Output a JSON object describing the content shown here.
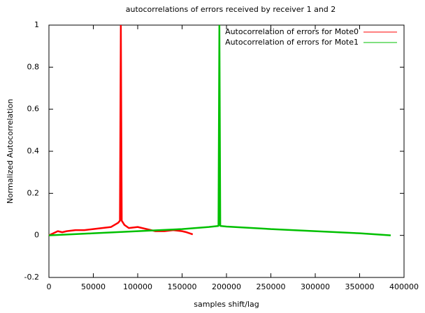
{
  "chart_data": {
    "type": "line",
    "title": "autocorrelations of errors received by receiver 1 and 2",
    "xlabel": "samples shift/lag",
    "ylabel": "Normalized Autocorrelation",
    "xlim": [
      0,
      400000
    ],
    "ylim": [
      -0.2,
      1
    ],
    "xticks": [
      0,
      50000,
      100000,
      150000,
      200000,
      250000,
      300000,
      350000,
      400000
    ],
    "yticks": [
      -0.2,
      0,
      0.2,
      0.4,
      0.6,
      0.8,
      1
    ],
    "legend": "top-right",
    "series": [
      {
        "name": "Autocorrelation of errors for Mote0",
        "color": "#ff0000",
        "x": [
          0,
          5000,
          10000,
          15000,
          20000,
          30000,
          40000,
          50000,
          60000,
          70000,
          78000,
          80000,
          81000,
          82000,
          85000,
          90000,
          100000,
          110000,
          120000,
          130000,
          140000,
          150000,
          155000,
          162000
        ],
        "values": [
          0,
          0.01,
          0.02,
          0.015,
          0.02,
          0.025,
          0.025,
          0.03,
          0.035,
          0.04,
          0.06,
          0.07,
          1,
          0.07,
          0.05,
          0.035,
          0.04,
          0.03,
          0.02,
          0.02,
          0.025,
          0.02,
          0.015,
          0.005
        ]
      },
      {
        "name": "Autocorrelation of errors for Mote1",
        "color": "#00c000",
        "x": [
          0,
          50000,
          100000,
          150000,
          180000,
          191000,
          192000,
          193000,
          200000,
          250000,
          300000,
          350000,
          385000
        ],
        "values": [
          0,
          0.01,
          0.02,
          0.03,
          0.04,
          0.045,
          1,
          0.045,
          0.042,
          0.03,
          0.02,
          0.01,
          0
        ]
      }
    ]
  }
}
